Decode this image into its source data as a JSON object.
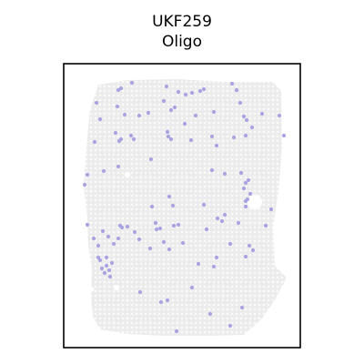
{
  "chart_data": {
    "type": "scatter",
    "title": "UKF259",
    "subtitle": "Oligo",
    "xlabel": "",
    "ylabel": "",
    "grid": false,
    "legend": "none",
    "colors": {
      "tissue": "#ececec",
      "highlight": "#a9a3e2",
      "frame": "#000000"
    },
    "series": [
      {
        "values_are": "xy",
        "points": [
          [
            145,
            91
          ],
          [
            133,
            97
          ],
          [
            130,
            99
          ],
          [
            183,
            95
          ],
          [
            196,
            101
          ],
          [
            204,
            104
          ],
          [
            211,
            102
          ],
          [
            220,
            100
          ],
          [
            224,
            98
          ],
          [
            255,
            92
          ],
          [
            260,
            99
          ],
          [
            106,
            113
          ],
          [
            110,
            131
          ],
          [
            129,
            117
          ],
          [
            137,
            126
          ],
          [
            153,
            127
          ],
          [
            163,
            124
          ],
          [
            180,
            111
          ],
          [
            188,
            121
          ],
          [
            192,
            118
          ],
          [
            215,
            127
          ],
          [
            235,
            123
          ],
          [
            264,
            113
          ],
          [
            268,
            128
          ],
          [
            271,
            132
          ],
          [
            288,
            125
          ],
          [
            307,
            127
          ],
          [
            104,
            156
          ],
          [
            127,
            146
          ],
          [
            133,
            153
          ],
          [
            144,
            149
          ],
          [
            147,
            153
          ],
          [
            131,
            155
          ],
          [
            185,
            150
          ],
          [
            188,
            153
          ],
          [
            184,
            145
          ],
          [
            203,
            136
          ],
          [
            210,
            154
          ],
          [
            233,
            150
          ],
          [
            238,
            160
          ],
          [
            257,
            151
          ],
          [
            270,
            149
          ],
          [
            277,
            140
          ],
          [
            312,
            149
          ],
          [
            93,
            203
          ],
          [
            96,
            192
          ],
          [
            114,
            188
          ],
          [
            130,
            183
          ],
          [
            166,
            175
          ],
          [
            233,
            187
          ],
          [
            247,
            191
          ],
          [
            265,
            190
          ],
          [
            270,
            201
          ],
          [
            273,
            198
          ],
          [
            268,
            207
          ],
          [
            275,
            213
          ],
          [
            272,
            219
          ],
          [
            270,
            227
          ],
          [
            270,
            221
          ],
          [
            298,
            230
          ],
          [
            186,
            216
          ],
          [
            190,
            226
          ],
          [
            167,
            227
          ],
          [
            224,
            225
          ],
          [
            247,
            236
          ],
          [
            244,
            243
          ],
          [
            239,
            240
          ],
          [
            227,
            252
          ],
          [
            262,
            245
          ],
          [
            292,
            248
          ],
          [
            96,
            247
          ],
          [
            103,
            262
          ],
          [
            108,
            270
          ],
          [
            113,
            254
          ],
          [
            119,
            260
          ],
          [
            125,
            268
          ],
          [
            130,
            262
          ],
          [
            132,
            248
          ],
          [
            134,
            250
          ],
          [
            140,
            249
          ],
          [
            110,
            286
          ],
          [
            112,
            295
          ],
          [
            115,
            300
          ],
          [
            117,
            292
          ],
          [
            121,
            304
          ],
          [
            108,
            283
          ],
          [
            117,
            283
          ],
          [
            123,
            289
          ],
          [
            120,
            297
          ],
          [
            148,
            255
          ],
          [
            153,
            263
          ],
          [
            172,
            252
          ],
          [
            165,
            273
          ],
          [
            180,
            266
          ],
          [
            186,
            274
          ],
          [
            191,
            248
          ],
          [
            196,
            247
          ],
          [
            201,
            267
          ],
          [
            218,
            290
          ],
          [
            238,
            283
          ],
          [
            235,
            293
          ],
          [
            253,
            268
          ],
          [
            274,
            270
          ],
          [
            278,
            275
          ],
          [
            270,
            282
          ],
          [
            154,
            321
          ],
          [
            177,
            332
          ],
          [
            184,
            330
          ],
          [
            211,
            316
          ],
          [
            231,
            345
          ],
          [
            253,
            358
          ],
          [
            266,
            338
          ],
          [
            194,
            364
          ],
          [
            171,
            245
          ],
          [
            176,
            251
          ]
        ]
      }
    ]
  }
}
